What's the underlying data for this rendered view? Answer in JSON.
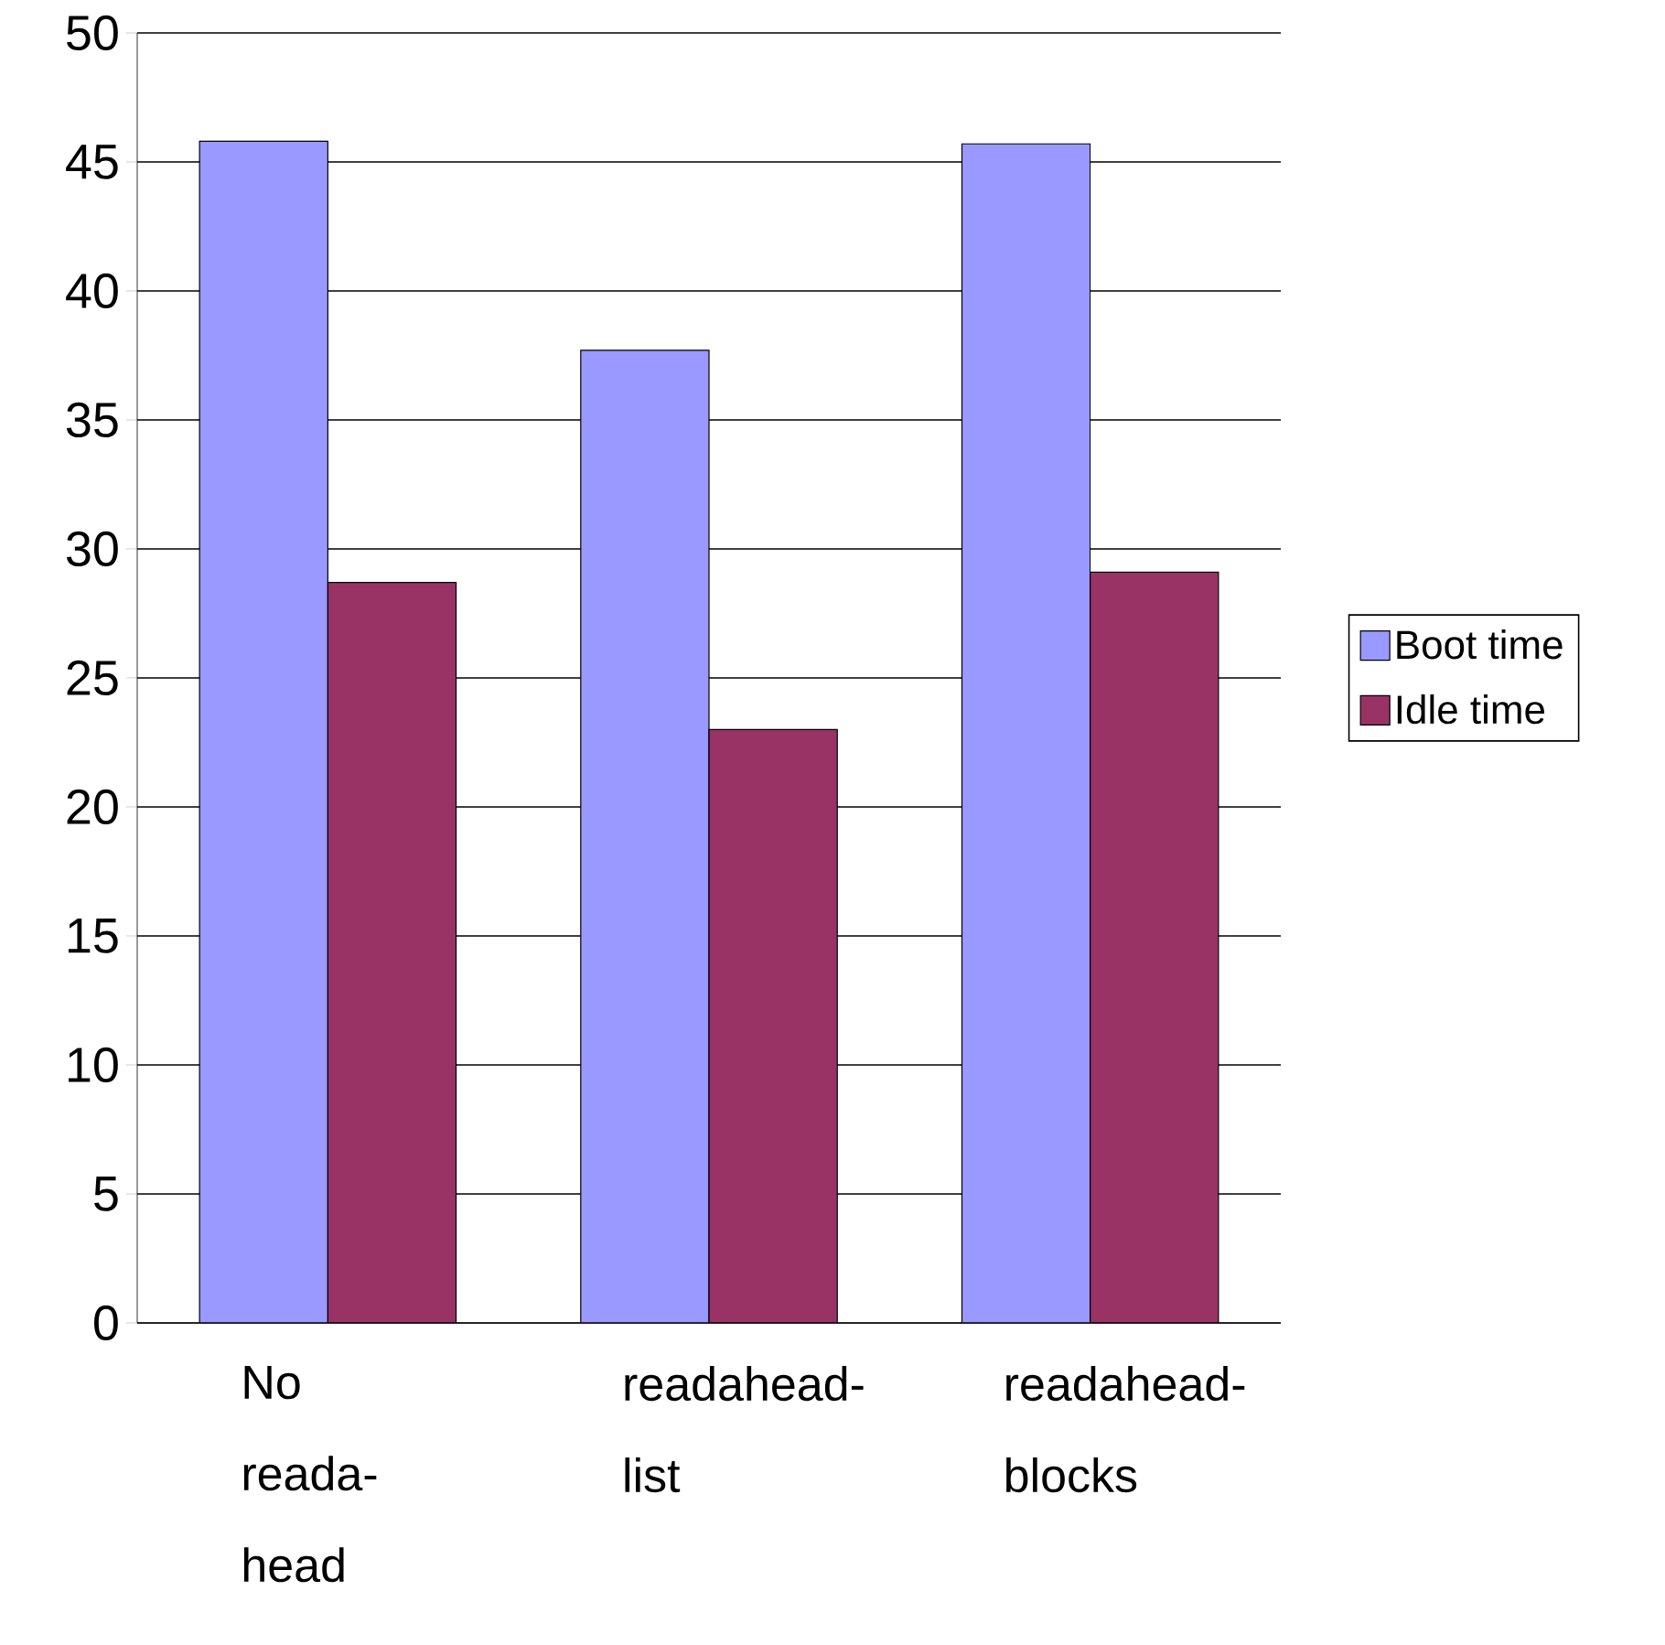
{
  "chart_data": {
    "type": "bar",
    "categories": [
      "No reada-head",
      "readahead-list",
      "readahead-blocks"
    ],
    "series": [
      {
        "name": "Boot time",
        "color": "#9999ff",
        "values": [
          45.8,
          37.7,
          45.7
        ]
      },
      {
        "name": "Idle time",
        "color": "#993366",
        "values": [
          28.7,
          23.0,
          29.1
        ]
      }
    ],
    "ylim": [
      0,
      50
    ],
    "yticks": [
      0,
      5,
      10,
      15,
      20,
      25,
      30,
      35,
      40,
      45,
      50
    ],
    "grid": "y",
    "legend": "right"
  }
}
